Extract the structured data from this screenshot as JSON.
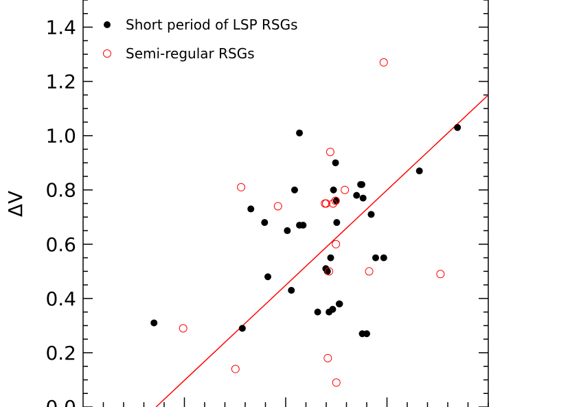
{
  "chart_data": {
    "type": "scatter",
    "title": "",
    "xlabel": "",
    "ylabel": "ΔV",
    "xlim": [
      0,
      10
    ],
    "ylim": [
      0.0,
      1.5
    ],
    "y_ticks": [
      0.0,
      0.2,
      0.4,
      0.6,
      0.8,
      1.0,
      1.2,
      1.4
    ],
    "y_tick_labels": [
      "0.0",
      "0.2",
      "0.4",
      "0.6",
      "0.8",
      "1.0",
      "1.2",
      "1.4"
    ],
    "x_minor_ticks": [
      0.5,
      1.0,
      1.5,
      2.0,
      2.5,
      3.0,
      3.5,
      4.0,
      4.5,
      5.0,
      5.5,
      6.0,
      6.5,
      7.0,
      7.5,
      8.0,
      8.5,
      9.0,
      9.5,
      10.0
    ],
    "x_major_ticks": [
      2.5,
      5.0,
      7.5
    ],
    "legend_position": "top-left",
    "grid": false,
    "series": [
      {
        "name": "Short period of LSP RSGs",
        "color": "#000000",
        "marker": "filled-circle",
        "x": [
          1.75,
          3.93,
          4.14,
          4.56,
          4.48,
          5.04,
          5.14,
          5.43,
          5.34,
          5.79,
          5.22,
          6.07,
          6.23,
          6.03,
          6.11,
          6.32,
          6.89,
          6.75,
          7.11,
          6.26,
          7.22,
          6.85,
          6.91,
          5.34,
          5.99,
          7.42,
          6.88,
          8.3,
          9.24,
          6.16,
          6.25,
          6.18,
          6.33,
          7.0
        ],
        "y": [
          0.31,
          0.29,
          0.73,
          0.48,
          0.68,
          0.65,
          0.43,
          0.67,
          1.01,
          0.35,
          0.8,
          0.35,
          0.9,
          0.5,
          0.55,
          0.38,
          0.27,
          0.78,
          0.71,
          0.68,
          0.55,
          0.82,
          0.77,
          0.67,
          0.51,
          0.55,
          0.82,
          0.87,
          1.03,
          0.36,
          0.76,
          0.8,
          0.38,
          0.27
        ]
      },
      {
        "name": "Semi-regular RSGs",
        "color": "#ff0000",
        "marker": "open-circle",
        "x": [
          2.47,
          3.76,
          3.9,
          4.81,
          5.97,
          6.1,
          6.07,
          6.17,
          6.23,
          6.24,
          6.04,
          6.25,
          7.06,
          6.46,
          7.42,
          8.82,
          6.0
        ],
        "y": [
          0.29,
          0.14,
          0.81,
          0.74,
          0.75,
          0.94,
          0.5,
          0.75,
          0.76,
          0.6,
          0.18,
          0.09,
          0.5,
          0.8,
          1.27,
          0.49,
          0.75
        ]
      }
    ],
    "fit_line": {
      "color": "#ff0000",
      "x": [
        1.8,
        10.0
      ],
      "y": [
        0.0,
        1.15
      ]
    }
  }
}
